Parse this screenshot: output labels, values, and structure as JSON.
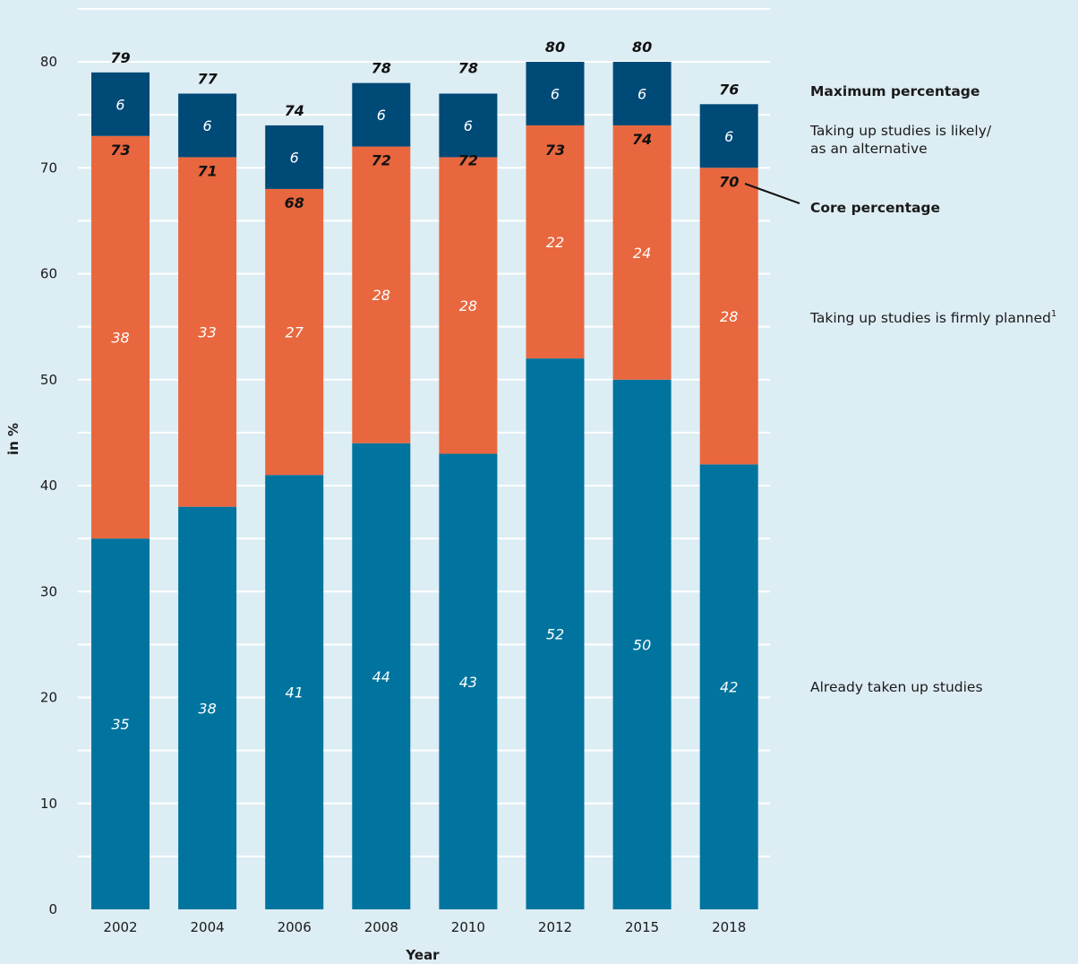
{
  "chart_data": {
    "type": "bar",
    "stacked": true,
    "categories": [
      "2002",
      "2004",
      "2006",
      "2008",
      "2010",
      "2012",
      "2015",
      "2018"
    ],
    "series": [
      {
        "name": "Already taken up studies",
        "values": [
          35,
          38,
          41,
          44,
          43,
          52,
          50,
          42
        ],
        "color": "#00749e"
      },
      {
        "name": "Taking up studies is firmly planned",
        "values": [
          38,
          33,
          27,
          28,
          28,
          22,
          24,
          28
        ],
        "color": "#e8673f"
      },
      {
        "name": "Taking up studies is likely/ as an alternative",
        "values": [
          6,
          6,
          6,
          6,
          6,
          6,
          6,
          6
        ],
        "color": "#004a78"
      }
    ],
    "core_percentage": [
      73,
      71,
      68,
      72,
      72,
      73,
      74,
      70
    ],
    "maximum_percentage": [
      79,
      77,
      74,
      78,
      78,
      80,
      80,
      76
    ],
    "xlabel": "Year",
    "ylabel": "in %",
    "ylim": [
      0,
      80
    ],
    "yticks": [
      0,
      10,
      20,
      30,
      40,
      50,
      60,
      70,
      80
    ],
    "grid": true,
    "legend": {
      "placement": "right",
      "maximum_label": "Maximum percentage",
      "likely_line1": "Taking up studies is likely/",
      "likely_line2": "as an alternative",
      "core_label": "Core percentage",
      "firmly_label": "Taking up studies is firmly planned",
      "firmly_footnote": "1",
      "already_label": "Already taken up studies"
    }
  }
}
